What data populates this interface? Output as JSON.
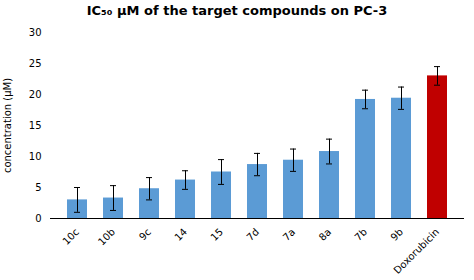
{
  "chart_data": {
    "type": "bar",
    "title": "IC₅₀ μM of the target compounds on PC-3",
    "ylabel": "concentration (μM)",
    "categories": [
      "10c",
      "10b",
      "9c",
      "14",
      "15",
      "7d",
      "7a",
      "8a",
      "7b",
      "9b",
      "Doxorubicin"
    ],
    "values": [
      3.0,
      3.3,
      4.8,
      6.2,
      7.5,
      8.7,
      9.4,
      10.8,
      19.2,
      19.4,
      23.0
    ],
    "errors": [
      2.0,
      2.0,
      1.8,
      1.5,
      2.0,
      1.8,
      1.8,
      2.0,
      1.5,
      1.8,
      1.5
    ],
    "colors": [
      "#5B9BD5",
      "#5B9BD5",
      "#5B9BD5",
      "#5B9BD5",
      "#5B9BD5",
      "#5B9BD5",
      "#5B9BD5",
      "#5B9BD5",
      "#5B9BD5",
      "#5B9BD5",
      "#C00000"
    ],
    "ylim": [
      0,
      30
    ],
    "yticks": [
      0,
      5,
      10,
      15,
      20,
      25,
      30
    ]
  }
}
